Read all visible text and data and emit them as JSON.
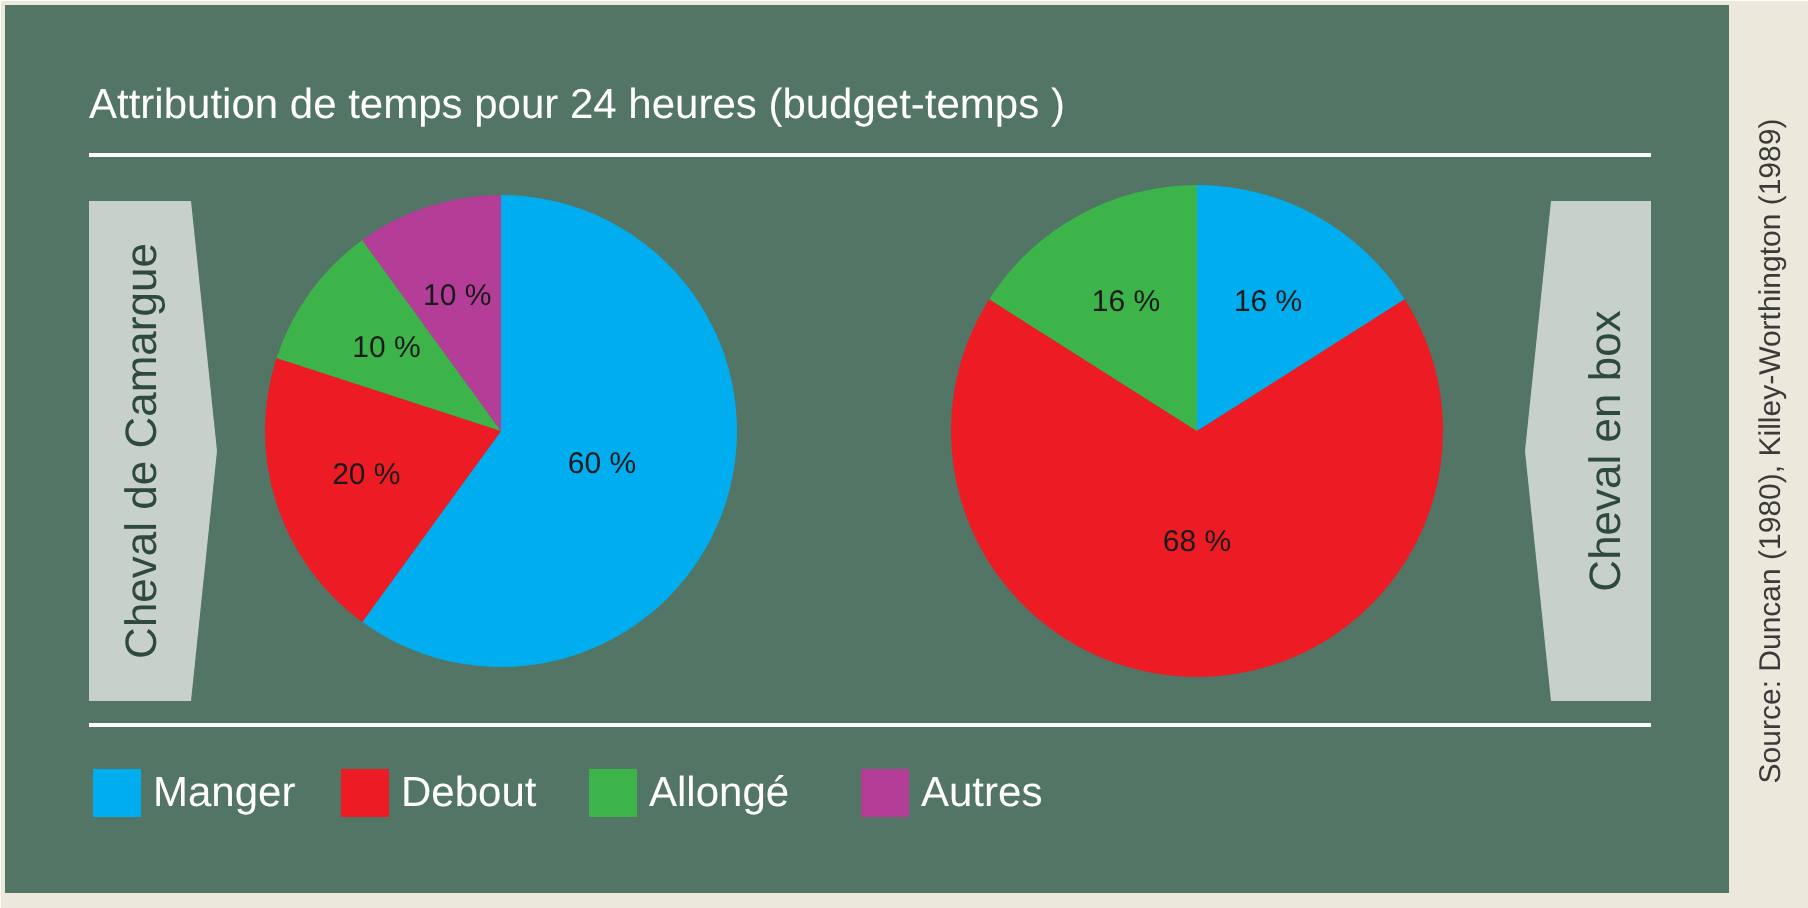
{
  "chart_data": [
    {
      "type": "pie",
      "title": "Attribution de temps pour 24 heures (budget-temps )",
      "ylabel": "Cheval de Camargue",
      "categories": [
        "Manger",
        "Debout",
        "Allongé",
        "Autres"
      ],
      "values": [
        60,
        20,
        10,
        10
      ],
      "colors": [
        "#00aeef",
        "#ed1c24",
        "#3cb44a",
        "#b43e97"
      ],
      "value_labels": [
        "60 %",
        "20 %",
        "10 %",
        "10 %"
      ],
      "legend": "bottom"
    },
    {
      "type": "pie",
      "ylabel": "Cheval en box",
      "categories": [
        null,
        null,
        null
      ],
      "values": [
        16,
        68,
        16
      ],
      "colors": [
        "#00aeef",
        "#ed1c24",
        "#3cb44a"
      ],
      "value_labels": [
        "16 %",
        "68 %",
        "16 %"
      ],
      "annotations": [
        "Source: Duncan (1980), Killey-Worthington (1989)"
      ]
    }
  ]
}
